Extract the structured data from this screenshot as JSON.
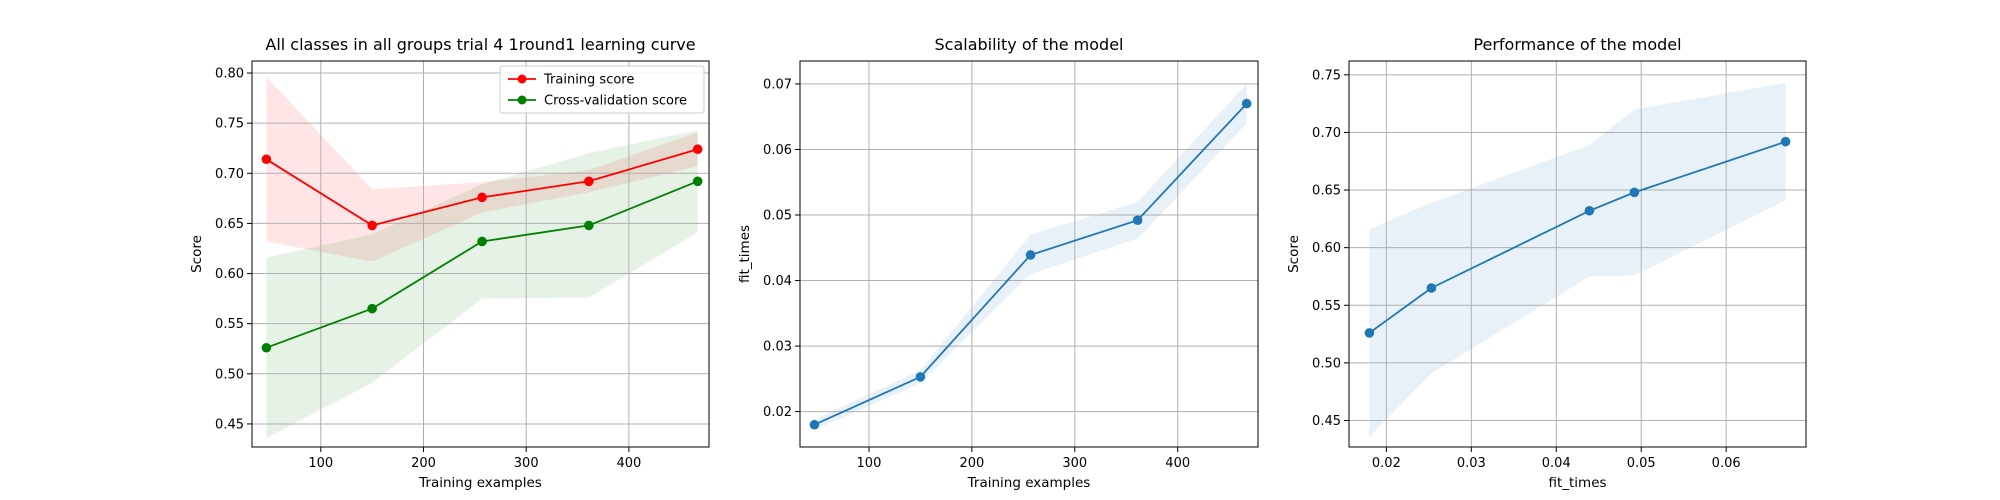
{
  "chart_data": [
    {
      "type": "line",
      "title": "All classes in all groups trial 4 1round1 learning curve",
      "xlabel": "Training examples",
      "ylabel": "Score",
      "xlim": [
        33,
        478
      ],
      "ylim": [
        0.427,
        0.812
      ],
      "xticks": [
        100,
        200,
        300,
        400
      ],
      "xtick_labels": [
        "100",
        "200",
        "300",
        "400"
      ],
      "yticks": [
        0.45,
        0.5,
        0.55,
        0.6,
        0.65,
        0.7,
        0.75,
        0.8
      ],
      "ytick_labels": [
        "0.45",
        "0.50",
        "0.55",
        "0.60",
        "0.65",
        "0.70",
        "0.75",
        "0.80"
      ],
      "grid": true,
      "legend": "upper right",
      "x": [
        47,
        150,
        257,
        361,
        467
      ],
      "series": [
        {
          "name": "Training score",
          "color": "#ff0000",
          "values": [
            0.714,
            0.648,
            0.676,
            0.692,
            0.724
          ],
          "band_low": [
            0.632,
            0.612,
            0.661,
            0.681,
            0.707
          ],
          "band_high": [
            0.796,
            0.684,
            0.691,
            0.703,
            0.741
          ],
          "band_color": "#ff0000",
          "band_opacity": 0.1
        },
        {
          "name": "Cross-validation score",
          "color": "#008000",
          "values": [
            0.526,
            0.565,
            0.632,
            0.648,
            0.692
          ],
          "band_low": [
            0.436,
            0.491,
            0.575,
            0.576,
            0.641
          ],
          "band_high": [
            0.616,
            0.639,
            0.689,
            0.72,
            0.743
          ],
          "band_color": "#008000",
          "band_opacity": 0.1
        }
      ]
    },
    {
      "type": "line",
      "title": "Scalability of the model",
      "xlabel": "Training examples",
      "ylabel": "fit_times",
      "xlim": [
        33,
        478
      ],
      "ylim": [
        0.0146,
        0.0735
      ],
      "xticks": [
        100,
        200,
        300,
        400
      ],
      "xtick_labels": [
        "100",
        "200",
        "300",
        "400"
      ],
      "yticks": [
        0.02,
        0.03,
        0.04,
        0.05,
        0.06,
        0.07
      ],
      "ytick_labels": [
        "0.02",
        "0.03",
        "0.04",
        "0.05",
        "0.06",
        "0.07"
      ],
      "grid": true,
      "x": [
        47,
        150,
        257,
        361,
        467
      ],
      "series": [
        {
          "color": "#1f77b4",
          "values": [
            0.018,
            0.0253,
            0.0439,
            0.0492,
            0.067
          ],
          "band_low": [
            0.0172,
            0.0243,
            0.041,
            0.0464,
            0.064
          ],
          "band_high": [
            0.0188,
            0.0263,
            0.047,
            0.052,
            0.07
          ],
          "band_color": "#1f77b4",
          "band_opacity": 0.1
        }
      ]
    },
    {
      "type": "line",
      "title": "Performance of the model",
      "xlabel": "fit_times",
      "ylabel": "Score",
      "xlim": [
        0.0156,
        0.0694
      ],
      "ylim": [
        0.427,
        0.762
      ],
      "xticks": [
        0.02,
        0.03,
        0.04,
        0.05,
        0.06
      ],
      "xtick_labels": [
        "0.02",
        "0.03",
        "0.04",
        "0.05",
        "0.06"
      ],
      "yticks": [
        0.45,
        0.5,
        0.55,
        0.6,
        0.65,
        0.7,
        0.75
      ],
      "ytick_labels": [
        "0.45",
        "0.50",
        "0.55",
        "0.60",
        "0.65",
        "0.70",
        "0.75"
      ],
      "grid": true,
      "x": [
        0.018,
        0.0253,
        0.0439,
        0.0492,
        0.067
      ],
      "series": [
        {
          "color": "#1f77b4",
          "values": [
            0.526,
            0.565,
            0.632,
            0.648,
            0.692
          ],
          "band_low": [
            0.436,
            0.491,
            0.575,
            0.576,
            0.641
          ],
          "band_high": [
            0.616,
            0.639,
            0.689,
            0.72,
            0.743
          ],
          "band_color": "#1f77b4",
          "band_opacity": 0.1
        }
      ]
    }
  ]
}
